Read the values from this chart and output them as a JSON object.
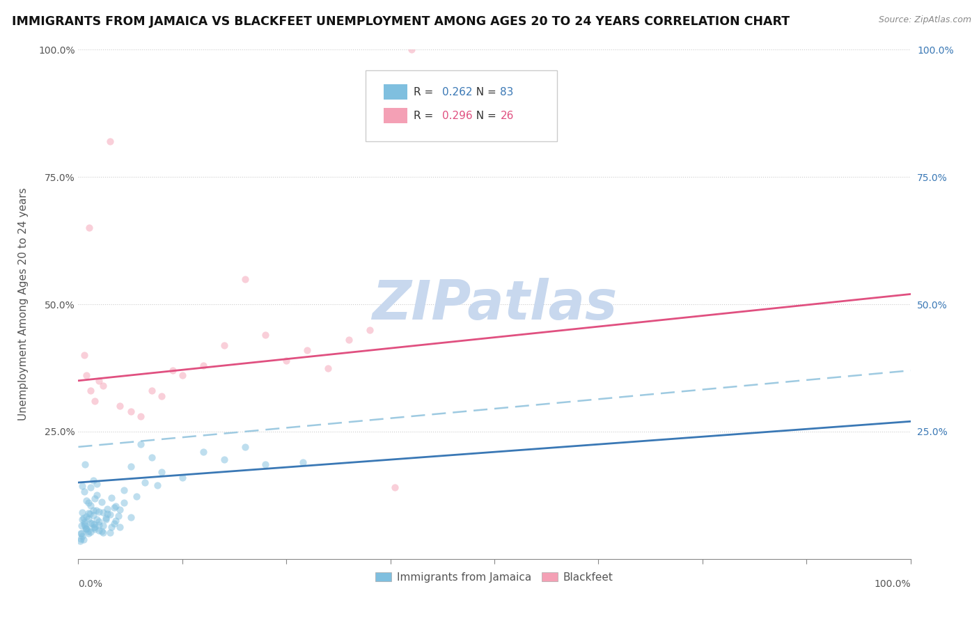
{
  "title": "IMMIGRANTS FROM JAMAICA VS BLACKFEET UNEMPLOYMENT AMONG AGES 20 TO 24 YEARS CORRELATION CHART",
  "source": "Source: ZipAtlas.com",
  "ylabel": "Unemployment Among Ages 20 to 24 years",
  "watermark": "ZIPatlas",
  "legend": {
    "jamaica": {
      "R": 0.262,
      "N": 83,
      "color": "#7fbfdf"
    },
    "blackfeet": {
      "R": 0.296,
      "N": 26,
      "color": "#f4a0b5"
    }
  },
  "jamaica_scatter": [
    [
      0.5,
      14.3
    ],
    [
      1.2,
      11.1
    ],
    [
      0.8,
      18.5
    ],
    [
      1.0,
      8.3
    ],
    [
      1.5,
      7.1
    ],
    [
      2.0,
      6.3
    ],
    [
      2.5,
      5.6
    ],
    [
      3.0,
      9.1
    ],
    [
      2.2,
      12.5
    ],
    [
      1.8,
      15.4
    ],
    [
      3.8,
      8.7
    ],
    [
      5.0,
      6.2
    ],
    [
      4.5,
      10.3
    ],
    [
      0.7,
      13.3
    ],
    [
      0.5,
      7.7
    ],
    [
      1.0,
      6.0
    ],
    [
      1.5,
      14.1
    ],
    [
      1.2,
      5.0
    ],
    [
      1.8,
      9.5
    ],
    [
      2.0,
      11.8
    ],
    [
      2.5,
      7.3
    ],
    [
      2.8,
      5.5
    ],
    [
      3.3,
      8.1
    ],
    [
      4.0,
      12.0
    ],
    [
      0.7,
      6.8
    ],
    [
      0.5,
      9.2
    ],
    [
      1.0,
      11.5
    ],
    [
      1.2,
      7.9
    ],
    [
      1.5,
      5.3
    ],
    [
      1.8,
      8.6
    ],
    [
      2.2,
      14.8
    ],
    [
      2.5,
      6.7
    ],
    [
      3.0,
      5.1
    ],
    [
      3.5,
      9.8
    ],
    [
      4.3,
      7.0
    ],
    [
      5.5,
      13.5
    ],
    [
      6.3,
      18.2
    ],
    [
      7.5,
      22.5
    ],
    [
      8.8,
      20.0
    ],
    [
      10.0,
      17.0
    ],
    [
      12.5,
      16.0
    ],
    [
      15.0,
      21.0
    ],
    [
      17.5,
      19.5
    ],
    [
      20.0,
      22.0
    ],
    [
      22.5,
      18.5
    ],
    [
      0.3,
      5.0
    ],
    [
      0.4,
      6.5
    ],
    [
      0.5,
      4.5
    ],
    [
      0.7,
      7.2
    ],
    [
      0.6,
      8.0
    ],
    [
      1.0,
      5.8
    ],
    [
      1.2,
      9.0
    ],
    [
      1.5,
      10.5
    ],
    [
      1.8,
      6.1
    ],
    [
      2.0,
      5.9
    ],
    [
      2.2,
      7.7
    ],
    [
      2.5,
      9.3
    ],
    [
      2.8,
      11.2
    ],
    [
      3.0,
      6.5
    ],
    [
      3.3,
      7.8
    ],
    [
      3.5,
      8.9
    ],
    [
      3.8,
      5.2
    ],
    [
      4.0,
      6.3
    ],
    [
      4.3,
      10.1
    ],
    [
      4.5,
      7.5
    ],
    [
      4.8,
      8.4
    ],
    [
      5.0,
      9.7
    ],
    [
      5.5,
      11.0
    ],
    [
      6.3,
      8.2
    ],
    [
      7.0,
      12.3
    ],
    [
      8.0,
      15.0
    ],
    [
      9.5,
      14.5
    ],
    [
      0.9,
      6.0
    ],
    [
      1.1,
      5.5
    ],
    [
      1.4,
      8.8
    ],
    [
      1.6,
      7.0
    ],
    [
      1.9,
      6.8
    ],
    [
      2.1,
      9.5
    ],
    [
      0.2,
      3.5
    ],
    [
      0.3,
      4.0
    ],
    [
      0.4,
      5.0
    ],
    [
      0.6,
      3.8
    ],
    [
      0.8,
      6.5
    ],
    [
      27.0,
      19.0
    ]
  ],
  "blackfeet_scatter": [
    [
      3.8,
      82.0
    ],
    [
      1.3,
      65.0
    ],
    [
      20.0,
      55.0
    ],
    [
      25.0,
      39.0
    ],
    [
      30.0,
      37.5
    ],
    [
      38.0,
      14.0
    ],
    [
      0.7,
      40.0
    ],
    [
      1.5,
      33.0
    ],
    [
      2.5,
      35.0
    ],
    [
      5.0,
      30.0
    ],
    [
      7.5,
      28.0
    ],
    [
      10.0,
      32.0
    ],
    [
      12.5,
      36.0
    ],
    [
      15.0,
      38.0
    ],
    [
      17.5,
      42.0
    ],
    [
      22.5,
      44.0
    ],
    [
      27.5,
      41.0
    ],
    [
      32.5,
      43.0
    ],
    [
      35.0,
      45.0
    ],
    [
      2.0,
      31.0
    ],
    [
      3.0,
      34.0
    ],
    [
      6.3,
      29.0
    ],
    [
      8.8,
      33.0
    ],
    [
      11.3,
      37.0
    ],
    [
      40.0,
      100.0
    ],
    [
      1.0,
      36.0
    ]
  ],
  "jamaica_trend": {
    "x_start": 0.0,
    "y_start": 15.0,
    "x_end": 100.0,
    "y_end": 27.0
  },
  "blackfeet_trend": {
    "x_start": 0.0,
    "y_start": 35.0,
    "x_end": 100.0,
    "y_end": 52.0
  },
  "jamaica_ci": {
    "x_start": 0.0,
    "y_start": 22.0,
    "x_end": 100.0,
    "y_end": 37.0
  },
  "xlim": [
    0,
    100
  ],
  "ylim": [
    0,
    100
  ],
  "scatter_size": 55,
  "scatter_alpha": 0.5,
  "jamaica_color": "#7fbfdf",
  "blackfeet_color": "#f4a0b5",
  "jamaica_trend_color": "#3a78b5",
  "blackfeet_trend_color": "#e05080",
  "jamaica_ci_color": "#9ecae1",
  "grid_color": "#cccccc",
  "background_color": "#ffffff",
  "watermark_color": "#c8d8ee",
  "title_fontsize": 12.5,
  "axis_label_fontsize": 11,
  "tick_fontsize": 10,
  "legend_fontsize": 11
}
